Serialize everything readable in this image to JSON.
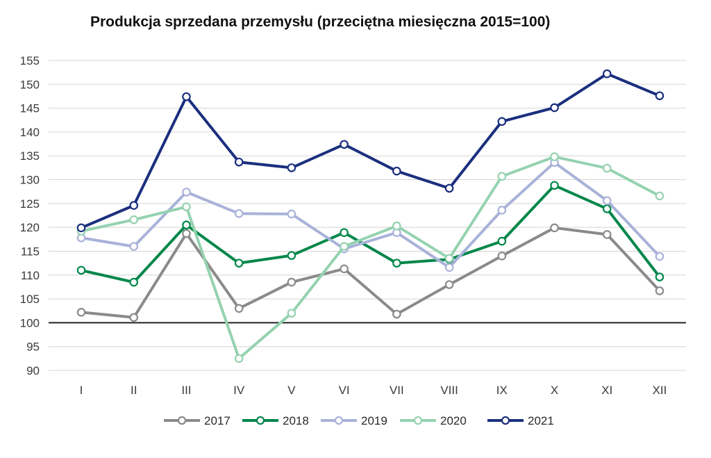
{
  "chart_data": {
    "type": "line",
    "title": "Produkcja sprzedana przemysłu (przeciętna miesięczna 2015=100)",
    "categories": [
      "I",
      "II",
      "III",
      "IV",
      "V",
      "VI",
      "VII",
      "VIII",
      "IX",
      "X",
      "XI",
      "XII"
    ],
    "ylim": [
      90,
      155
    ],
    "yticks": [
      90,
      95,
      100,
      105,
      110,
      115,
      120,
      125,
      130,
      135,
      140,
      145,
      150,
      155
    ],
    "reference_line": 100,
    "grid": true,
    "legend": "bottom",
    "series": [
      {
        "name": "2017",
        "color": "#8a8a8a",
        "values": [
          102.2,
          101.1,
          118.7,
          103.0,
          108.5,
          111.3,
          101.8,
          108.0,
          114.0,
          119.9,
          118.5,
          106.7
        ]
      },
      {
        "name": "2018",
        "color": "#00874a",
        "values": [
          111.0,
          108.5,
          120.5,
          112.5,
          114.1,
          118.9,
          112.5,
          113.3,
          117.1,
          128.8,
          123.9,
          109.6
        ]
      },
      {
        "name": "2019",
        "color": "#a9b2d8",
        "values": [
          117.8,
          116.0,
          127.4,
          122.9,
          122.8,
          115.5,
          118.9,
          111.6,
          123.6,
          133.6,
          125.6,
          113.9
        ]
      },
      {
        "name": "2020",
        "color": "#95d2b0",
        "values": [
          119.2,
          121.6,
          124.3,
          92.5,
          102.0,
          116.0,
          120.3,
          113.5,
          130.7,
          134.8,
          132.4,
          126.6
        ]
      },
      {
        "name": "2021",
        "color": "#1b2f7e",
        "values": [
          119.9,
          124.6,
          147.4,
          133.7,
          132.5,
          137.4,
          131.8,
          128.2,
          142.2,
          145.1,
          152.2,
          147.6
        ]
      }
    ]
  }
}
